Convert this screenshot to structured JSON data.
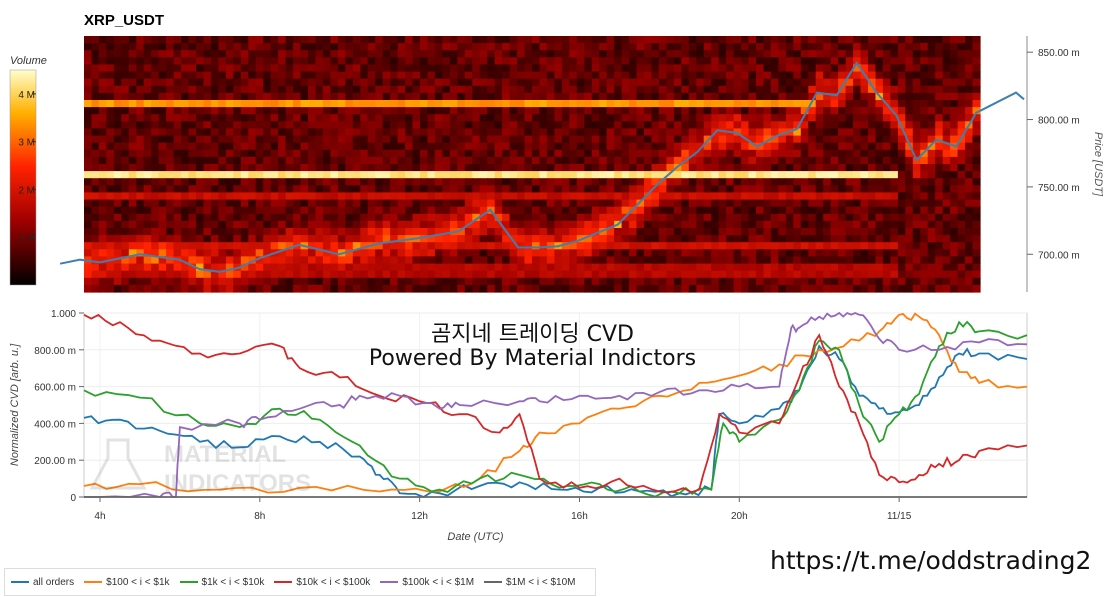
{
  "title": "XRP_USDT",
  "overlay": {
    "line1": "곰지네 트레이딩 CVD",
    "line2": "Powered By Material Indictors"
  },
  "footer_link": "https://t.me/oddstrading2",
  "watermark": {
    "line1": "MATERIAL",
    "line2": "INDICATORS"
  },
  "colors": {
    "heat_low": "#1a0000",
    "heat_mid": "#c40000",
    "heat_high": "#ffff66",
    "price": "#3f7fb0"
  },
  "chart_data": [
    {
      "type": "heatmap",
      "name": "XRP_USDT",
      "colorbar": {
        "title": "Volume",
        "ticks": [
          "1 M",
          "2 M",
          "3 M",
          "4 M"
        ],
        "tick_values": [
          1,
          2,
          3,
          4
        ],
        "range": [
          0,
          4.5
        ]
      },
      "y_axis": {
        "label": "Price [USDT]",
        "ticks": [
          "700.00 m",
          "750.00 m",
          "800.00 m",
          "850.00 m"
        ],
        "tick_values": [
          0.7,
          0.75,
          0.8,
          0.85
        ],
        "range": [
          0.672,
          0.862
        ]
      },
      "bands": [
        {
          "price": 0.812,
          "level": 3.4
        },
        {
          "price": 0.76,
          "level": 4.2
        },
        {
          "price": 0.744,
          "level": 1.8
        },
        {
          "price": 0.708,
          "level": 1.9
        },
        {
          "price": 0.688,
          "level": 1.6
        }
      ],
      "price_series": {
        "x_hours": [
          3.0,
          3.5,
          4.0,
          5.0,
          6.0,
          6.5,
          7.0,
          7.5,
          8.0,
          9.0,
          10.0,
          11.0,
          12.0,
          13.0,
          13.8,
          14.5,
          15.0,
          15.5,
          16.0,
          17.0,
          18.0,
          18.5,
          19.0,
          19.5,
          20.0,
          20.5,
          21.0,
          21.5,
          22.0,
          22.5,
          23.0,
          23.5,
          24.0,
          24.5,
          25.0,
          25.5,
          26.0,
          27.0,
          27.2
        ],
        "values": [
          0.693,
          0.696,
          0.694,
          0.7,
          0.696,
          0.689,
          0.687,
          0.69,
          0.697,
          0.707,
          0.7,
          0.708,
          0.712,
          0.717,
          0.733,
          0.705,
          0.705,
          0.706,
          0.71,
          0.722,
          0.752,
          0.765,
          0.776,
          0.792,
          0.79,
          0.78,
          0.788,
          0.793,
          0.82,
          0.818,
          0.842,
          0.82,
          0.803,
          0.77,
          0.785,
          0.78,
          0.805,
          0.82,
          0.815
        ]
      }
    },
    {
      "type": "line",
      "ylabel": "Normalized CVD [arb. u.]",
      "xlabel": "Date (UTC)",
      "x_ticks": [
        "4h",
        "8h",
        "12h",
        "16h",
        "20h",
        "11/15"
      ],
      "x_tick_hours": [
        4,
        8,
        12,
        16,
        20,
        24
      ],
      "x_range_hours": [
        3.6,
        27.2
      ],
      "y_ticks": [
        "0",
        "200.00 m",
        "400.00 m",
        "600.00 m",
        "800.00 m",
        "1.000"
      ],
      "y_tick_values": [
        0,
        0.2,
        0.4,
        0.6,
        0.8,
        1.0
      ],
      "ylim": [
        0,
        1.0
      ],
      "series": [
        {
          "name": "all orders",
          "color": "#1f77b4",
          "x": [
            3.6,
            4.5,
            5.5,
            6.5,
            7.5,
            8.5,
            9.5,
            10.5,
            11.0,
            11.5,
            12.5,
            13.5,
            14.5,
            15.5,
            16.5,
            17.5,
            18.5,
            19.3,
            19.5,
            20.0,
            21.0,
            21.5,
            22.0,
            22.5,
            23.0,
            23.5,
            24.0,
            24.5,
            25.0,
            25.5,
            26.0,
            27.2
          ],
          "y": [
            0.43,
            0.42,
            0.36,
            0.3,
            0.27,
            0.33,
            0.3,
            0.22,
            0.12,
            0.02,
            0.02,
            0.06,
            0.08,
            0.04,
            0.05,
            0.03,
            0.02,
            0.04,
            0.45,
            0.4,
            0.48,
            0.58,
            0.82,
            0.75,
            0.55,
            0.48,
            0.46,
            0.5,
            0.65,
            0.78,
            0.78,
            0.75
          ]
        },
        {
          "name": "$100 < i < $1k",
          "color": "#ff7f0e",
          "x": [
            3.6,
            5.0,
            7.0,
            9.0,
            11.0,
            12.5,
            13.5,
            14.5,
            15.0,
            16.0,
            17.0,
            18.0,
            19.0,
            20.0,
            21.0,
            22.0,
            23.0,
            23.5,
            24.0,
            24.5,
            25.0,
            25.5,
            26.0,
            27.2
          ],
          "y": [
            0.06,
            0.07,
            0.04,
            0.05,
            0.03,
            0.03,
            0.1,
            0.25,
            0.35,
            0.4,
            0.48,
            0.55,
            0.62,
            0.66,
            0.72,
            0.8,
            0.85,
            0.9,
            0.99,
            0.98,
            0.88,
            0.68,
            0.62,
            0.6
          ]
        },
        {
          "name": "$1k < i < $10k",
          "color": "#2ca02c",
          "x": [
            3.6,
            5.0,
            6.5,
            7.5,
            8.5,
            9.5,
            10.5,
            11.5,
            12.5,
            13.5,
            14.5,
            15.5,
            16.5,
            17.5,
            18.5,
            19.3,
            19.6,
            20.0,
            21.0,
            21.5,
            22.0,
            22.5,
            23.0,
            23.5,
            24.0,
            24.5,
            25.0,
            25.5,
            26.0,
            27.2
          ],
          "y": [
            0.58,
            0.54,
            0.4,
            0.38,
            0.48,
            0.42,
            0.28,
            0.1,
            0.04,
            0.1,
            0.12,
            0.05,
            0.07,
            0.03,
            0.02,
            0.04,
            0.4,
            0.3,
            0.42,
            0.58,
            0.85,
            0.8,
            0.5,
            0.3,
            0.45,
            0.56,
            0.82,
            0.95,
            0.9,
            0.88
          ]
        },
        {
          "name": "$10k < i < $100k",
          "color": "#d62728",
          "x": [
            3.6,
            4.5,
            5.5,
            6.5,
            7.5,
            8.5,
            9.0,
            10.0,
            11.0,
            12.0,
            13.0,
            14.0,
            14.5,
            15.0,
            16.0,
            17.0,
            18.0,
            19.0,
            19.5,
            20.0,
            21.0,
            21.5,
            22.0,
            22.5,
            23.0,
            23.5,
            24.0,
            24.5,
            25.0,
            25.5,
            26.0,
            27.2
          ],
          "y": [
            0.99,
            0.95,
            0.85,
            0.78,
            0.78,
            0.82,
            0.7,
            0.65,
            0.55,
            0.52,
            0.45,
            0.35,
            0.45,
            0.1,
            0.05,
            0.1,
            0.03,
            0.04,
            0.45,
            0.35,
            0.4,
            0.65,
            0.88,
            0.6,
            0.4,
            0.12,
            0.08,
            0.12,
            0.18,
            0.2,
            0.25,
            0.28
          ]
        },
        {
          "name": "$100k < i < $1M",
          "color": "#9467bd",
          "x": [
            3.6,
            5.5,
            5.9,
            6.0,
            7.5,
            8.0,
            9.0,
            10.0,
            10.5,
            11.5,
            12.5,
            13.0,
            14.5,
            15.0,
            16.0,
            17.0,
            18.0,
            19.0,
            20.0,
            21.0,
            21.3,
            21.5,
            22.0,
            22.5,
            23.0,
            23.5,
            24.0,
            25.0,
            26.0,
            27.2
          ],
          "y": [
            0.0,
            0.0,
            0.0,
            0.38,
            0.4,
            0.42,
            0.48,
            0.5,
            0.55,
            0.55,
            0.48,
            0.5,
            0.52,
            0.52,
            0.55,
            0.55,
            0.57,
            0.58,
            0.6,
            0.6,
            0.92,
            0.92,
            0.98,
            1.0,
            0.99,
            0.86,
            0.8,
            0.8,
            0.84,
            0.83
          ]
        },
        {
          "name": "$1M < i < $10M",
          "color": "#666666",
          "x": [
            3.6,
            27.2
          ],
          "y": [
            0.0,
            0.0
          ]
        }
      ],
      "legend": "bottom"
    }
  ]
}
